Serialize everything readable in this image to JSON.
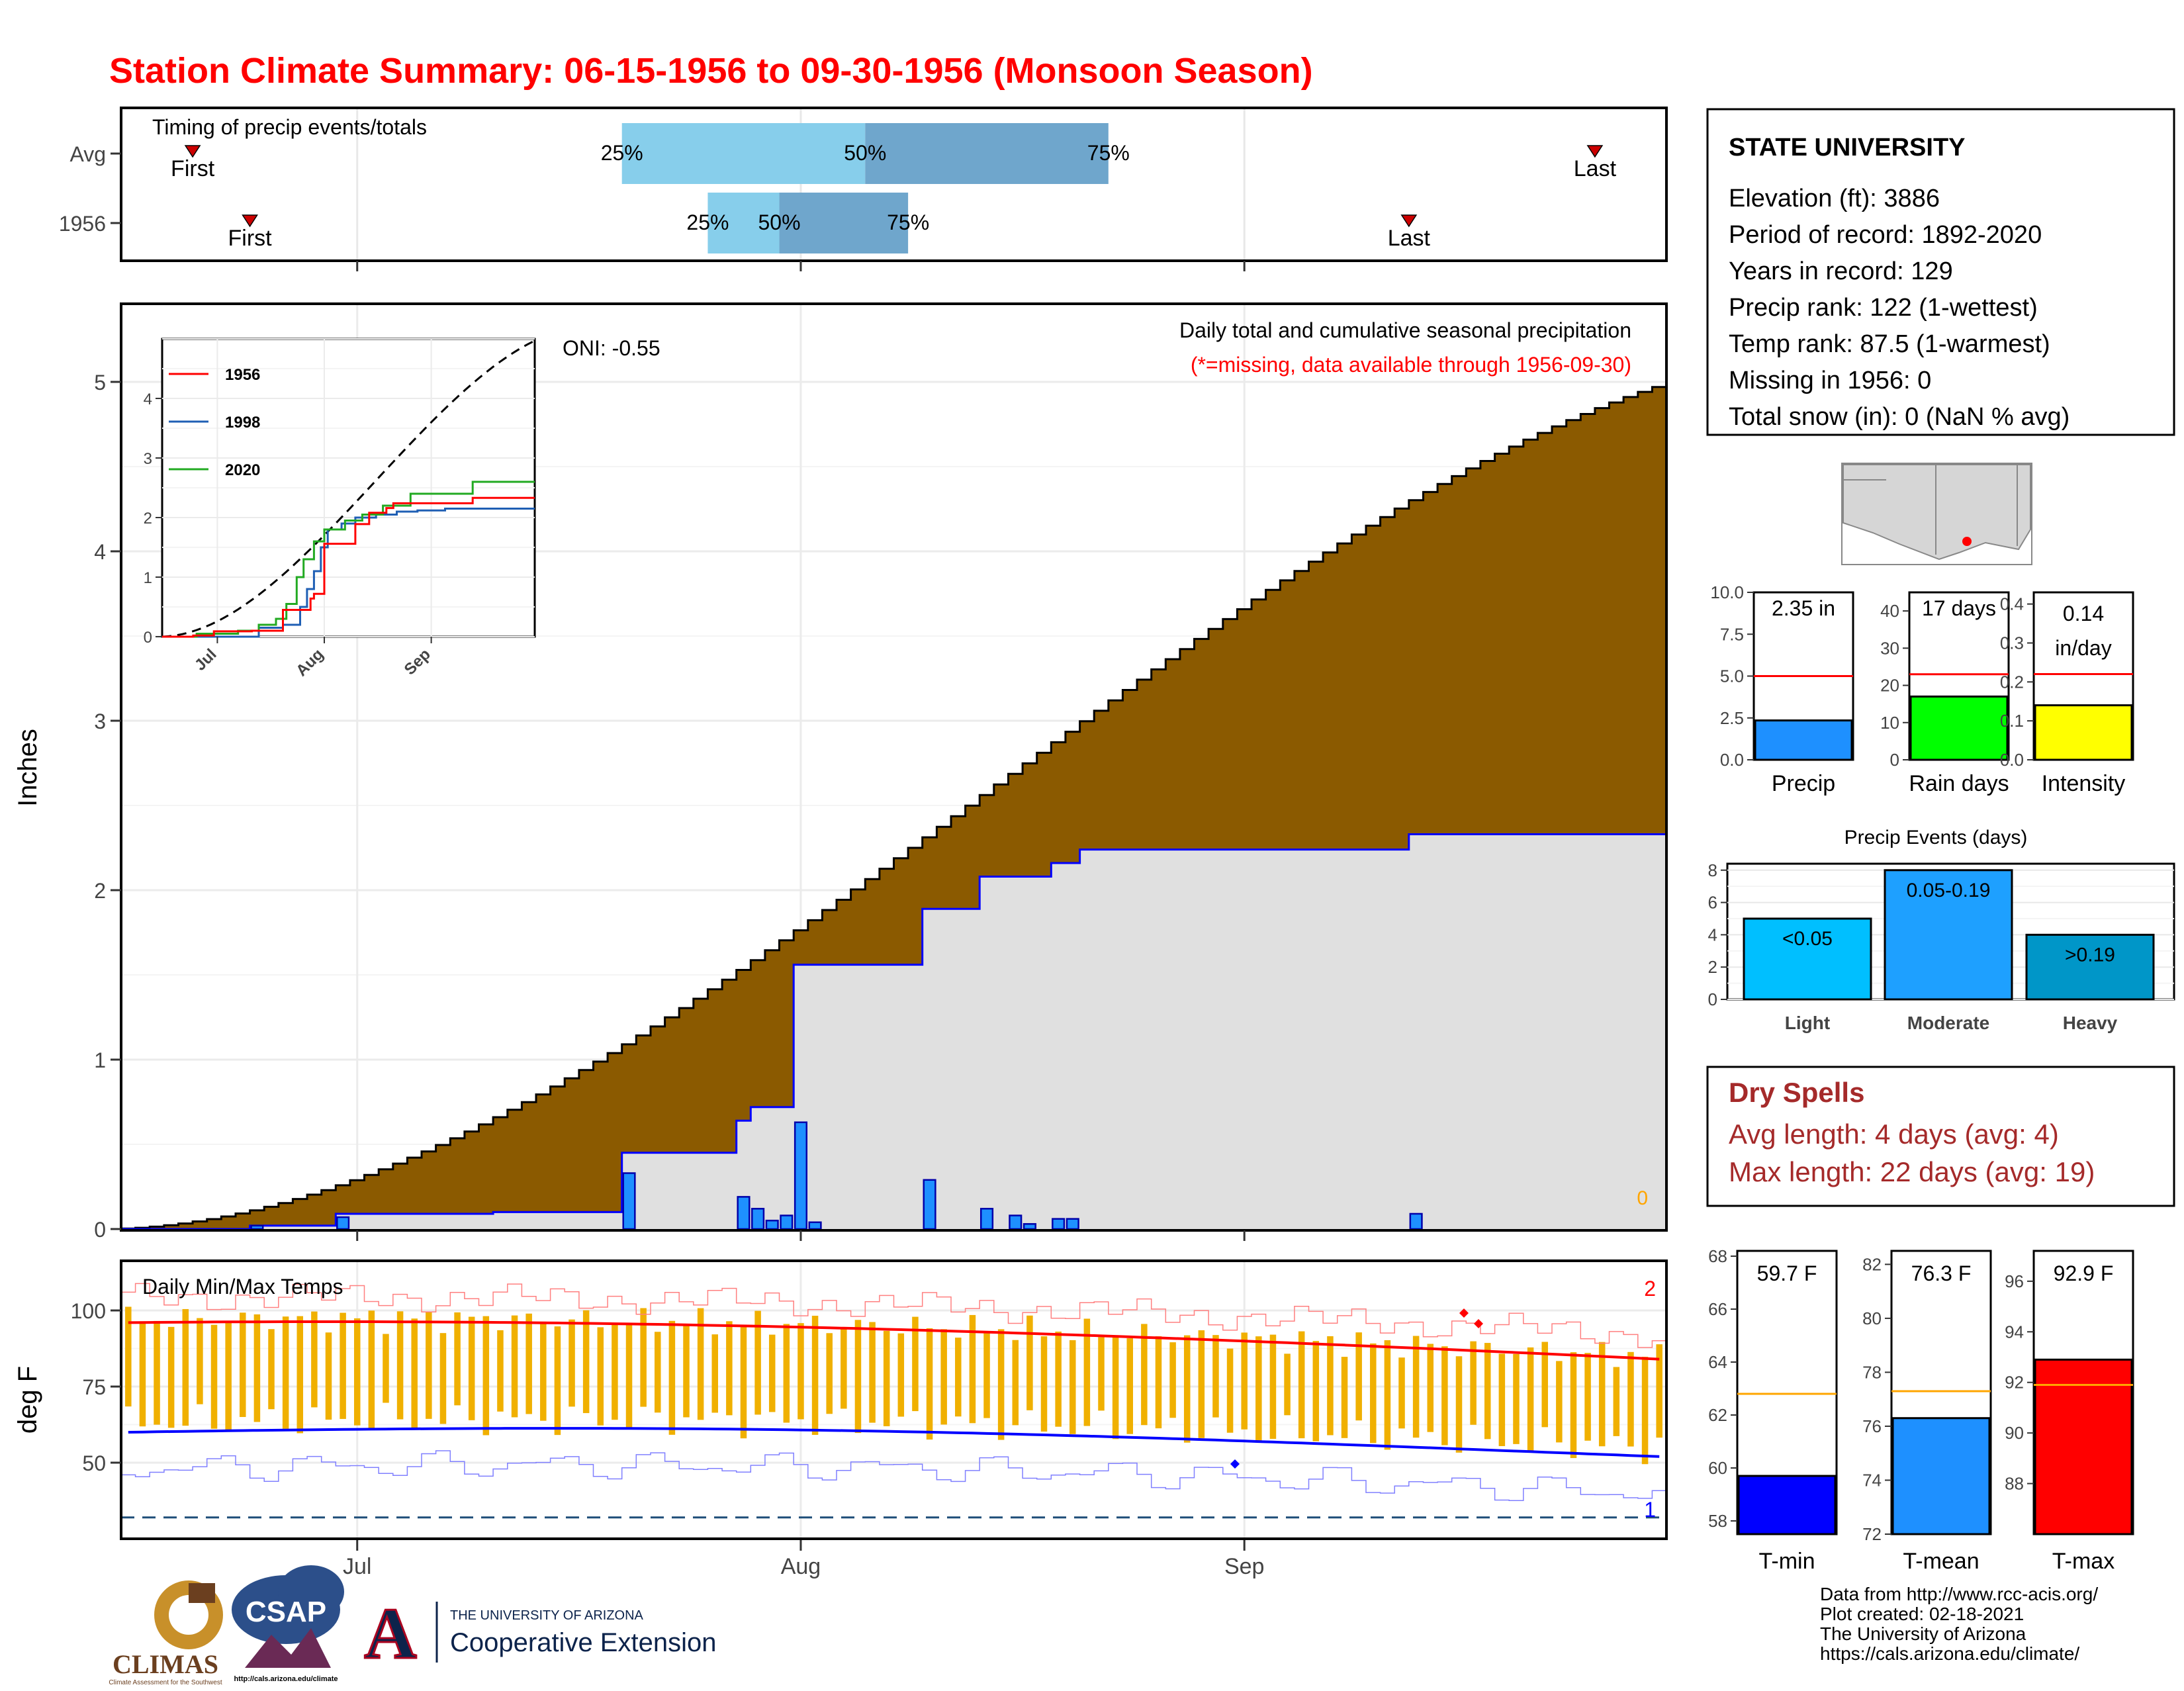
{
  "title": "Station Climate Summary: 06-15-1956 to 09-30-1956 (Monsoon Season)",
  "colors": {
    "title": "#ff0000",
    "cum_fill": "#8b5a00",
    "observed_fill": "#e0e0e0",
    "observed_line": "#0000ff",
    "daily_bar": "#1e90ff",
    "temp_bar": "#f0b000",
    "tmax_avg": "#ff0000",
    "tmin_avg": "#0000ff",
    "q_light": "#87ceeb",
    "q_dark": "#6fa6cc"
  },
  "timing": {
    "label": "Timing of precip events/totals",
    "rows": [
      {
        "name": "Avg",
        "first": "First",
        "last": "Last",
        "first_date": "1956-06-20",
        "last_date": "1956-09-26",
        "p25_date": "1956-07-20",
        "p50_date": "1956-08-06",
        "p75_date": "1956-08-23",
        "p25": "25%",
        "p50": "50%",
        "p75": "75%"
      },
      {
        "name": "1956",
        "first": "First",
        "last": "Last",
        "first_date": "1956-06-24",
        "last_date": "1956-09-13",
        "p25_date": "1956-07-26",
        "p50_date": "1956-07-31",
        "p75_date": "1956-08-09",
        "p25": "25%",
        "p50": "50%",
        "p75": "75%"
      }
    ]
  },
  "precip_panel": {
    "title": "Daily total and cumulative seasonal precipitation",
    "note": "(*=missing, data available through 1956-09-30)",
    "oni": "ONI: -0.55",
    "ylabel": "Inches",
    "missing_count": "0",
    "yticks": [
      "0",
      "1",
      "2",
      "3",
      "4",
      "5"
    ],
    "months": [
      "Jul",
      "Aug",
      "Sep"
    ]
  },
  "inset": {
    "yticks": [
      "0",
      "1",
      "2",
      "3",
      "4"
    ],
    "months": [
      "Jul",
      "Aug",
      "Sep"
    ],
    "legend": [
      {
        "name": "1956",
        "color": "#ff0000"
      },
      {
        "name": "1998",
        "color": "#1f5fb4"
      },
      {
        "name": "2020",
        "color": "#22aa22"
      }
    ]
  },
  "temp_panel": {
    "title": "Daily Min/Max Temps",
    "ylabel": "deg F",
    "yticks": [
      "50",
      "75",
      "100"
    ],
    "record_high_count": "2",
    "record_low_count": "1",
    "months": [
      "Jul",
      "Aug",
      "Sep"
    ]
  },
  "station": {
    "name": "STATE UNIVERSITY",
    "lines": [
      "Elevation (ft): 3886",
      "Period of record: 1892-2020",
      "Years in record: 129",
      "Precip rank: 122 (1-wettest)",
      "Temp rank: 87.5 (1-warmest)",
      "Missing in 1956: 0",
      "Total snow (in): 0 (NaN % avg)"
    ]
  },
  "summary_bars": [
    {
      "label": "Precip",
      "value_label": "2.35 in",
      "value": 2.35,
      "avg": 5.0,
      "ymax": 10,
      "ticks": [
        "0.0",
        "2.5",
        "5.0",
        "7.5",
        "10.0"
      ],
      "color": "#1e90ff"
    },
    {
      "label": "Rain days",
      "value_label": "17 days",
      "value": 17,
      "avg": 23,
      "ymax": 45,
      "ticks": [
        "0",
        "10",
        "20",
        "30",
        "40"
      ],
      "color": "#00ff00"
    },
    {
      "label": "Intensity",
      "value_label": "0.14 in/day",
      "value_label_1": "0.14",
      "value_label_2": "in/day",
      "value": 0.14,
      "avg": 0.22,
      "ymax": 0.43,
      "ticks": [
        "0.0",
        "0.1",
        "0.2",
        "0.3",
        "0.4"
      ],
      "color": "#ffff00"
    }
  ],
  "precip_events": {
    "title": "Precip Events (days)",
    "ticks": [
      "0",
      "2",
      "4",
      "6",
      "8"
    ],
    "bars": [
      {
        "label": "Light",
        "bin": "<0.05",
        "value": 5,
        "color": "#00bfff"
      },
      {
        "label": "Moderate",
        "bin": "0.05-0.19",
        "value": 8,
        "color": "#1ea0ff"
      },
      {
        "label": "Heavy",
        "bin": ">0.19",
        "value": 4,
        "color": "#0096c8"
      }
    ]
  },
  "dry_spells": {
    "title": "Dry Spells",
    "avg_line": "Avg length: 4 days (avg: 4)",
    "max_line": "Max length: 22 days (avg: 19)"
  },
  "temp_bars": [
    {
      "label": "T-min",
      "value_label": "59.7 F",
      "value": 59.7,
      "avg": 62.8,
      "ymin": 57.5,
      "ymax": 68.2,
      "ticks": [
        "58",
        "60",
        "62",
        "64",
        "66",
        "68"
      ],
      "color": "#0000ff"
    },
    {
      "label": "T-mean",
      "value_label": "76.3 F",
      "value": 76.3,
      "avg": 77.3,
      "ymin": 72,
      "ymax": 82.5,
      "ticks": [
        "72",
        "74",
        "76",
        "78",
        "80",
        "82"
      ],
      "color": "#1e90ff"
    },
    {
      "label": "T-max",
      "value_label": "92.9 F",
      "value": 92.9,
      "avg": 91.9,
      "ymin": 86,
      "ymax": 97.2,
      "ticks": [
        "88",
        "90",
        "92",
        "94",
        "96"
      ],
      "color": "#ff0000"
    }
  ],
  "footer": {
    "lines": [
      "Data from http://www.rcc-acis.org/",
      "Plot created: 02-18-2021",
      "The University of Arizona",
      "https://cals.arizona.edu/climate/"
    ]
  },
  "logos": {
    "climas": "CLIMAS",
    "climas_sub": "Climate Assessment for the Southwest",
    "csap": "CSAP",
    "csap_url": "http://cals.arizona.edu/climate",
    "ua_letter": "A",
    "ua_top": "THE UNIVERSITY OF ARIZONA",
    "ua_bottom": "Cooperative Extension"
  },
  "chart_data": [
    {
      "type": "area",
      "title": "Daily total and cumulative seasonal precipitation",
      "ylabel": "Inches",
      "x_range": [
        "1956-06-15",
        "1956-09-30"
      ],
      "ylim": [
        0,
        5.4
      ],
      "series": [
        {
          "name": "avg cumulative",
          "x_end": "1956-09-30",
          "total": 4.97
        },
        {
          "name": "observed cumulative",
          "steps": [
            [
              "1956-06-15",
              0.0
            ],
            [
              "1956-06-24",
              0.02
            ],
            [
              "1956-06-30",
              0.09
            ],
            [
              "1956-07-11",
              0.1
            ],
            [
              "1956-07-20",
              0.45
            ],
            [
              "1956-07-28",
              0.64
            ],
            [
              "1956-07-29",
              0.72
            ],
            [
              "1956-08-01",
              1.56
            ],
            [
              "1956-08-10",
              1.89
            ],
            [
              "1956-08-14",
              2.08
            ],
            [
              "1956-08-19",
              2.16
            ],
            [
              "1956-08-21",
              2.24
            ],
            [
              "1956-09-13",
              2.33
            ]
          ]
        },
        {
          "name": "daily precip",
          "points": [
            [
              "1956-06-24",
              0.02
            ],
            [
              "1956-06-30",
              0.07
            ],
            [
              "1956-07-20",
              0.33
            ],
            [
              "1956-07-28",
              0.19
            ],
            [
              "1956-07-29",
              0.12
            ],
            [
              "1956-07-30",
              0.05
            ],
            [
              "1956-07-31",
              0.08
            ],
            [
              "1956-08-01",
              0.63
            ],
            [
              "1956-08-02",
              0.04
            ],
            [
              "1956-08-10",
              0.29
            ],
            [
              "1956-08-14",
              0.12
            ],
            [
              "1956-08-16",
              0.08
            ],
            [
              "1956-08-17",
              0.03
            ],
            [
              "1956-08-19",
              0.06
            ],
            [
              "1956-08-20",
              0.06
            ],
            [
              "1956-09-13",
              0.09
            ]
          ]
        }
      ]
    },
    {
      "type": "line",
      "ylim": [
        0,
        5.2
      ],
      "series": [
        {
          "name": "1956",
          "final": 2.35
        },
        {
          "name": "1998",
          "final": 2.1
        },
        {
          "name": "2020",
          "final": 2.6
        }
      ]
    },
    {
      "type": "bar",
      "title": "Daily Min/Max Temps",
      "ylabel": "deg F",
      "ylim": [
        32,
        113
      ],
      "tmax_avg_start": 96,
      "tmax_avg_end": 84,
      "tmin_avg_start": 60,
      "tmin_avg_end": 52
    }
  ]
}
